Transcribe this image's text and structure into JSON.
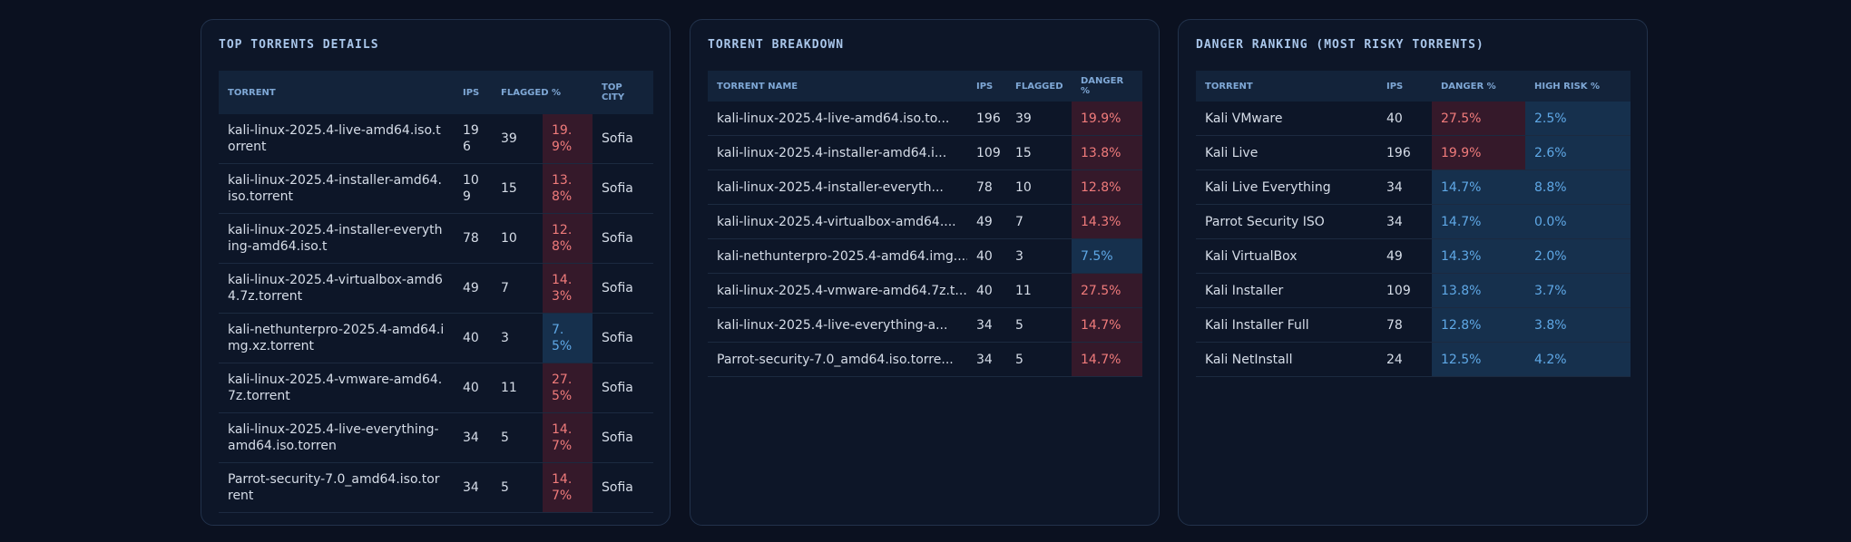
{
  "panels": [
    {
      "title": "TOP TORRENTS DETAILS",
      "columns": [
        "TORRENT",
        "IPS",
        "FLAGGED",
        "%",
        "TOP CITY"
      ],
      "widths": [
        259,
        42,
        56,
        55,
        67
      ],
      "tone_columns": [
        3
      ],
      "rows": [
        [
          "kali-linux-2025.4-live-amd64.iso.torrent",
          "196",
          "39",
          "19.9%",
          "Sofia"
        ],
        [
          "kali-linux-2025.4-installer-amd64.iso.torrent",
          "109",
          "15",
          "13.8%",
          "Sofia"
        ],
        [
          "kali-linux-2025.4-installer-everything-amd64.iso.t",
          "78",
          "10",
          "12.8%",
          "Sofia"
        ],
        [
          "kali-linux-2025.4-virtualbox-amd64.7z.torrent",
          "49",
          "7",
          "14.3%",
          "Sofia"
        ],
        [
          "kali-nethunterpro-2025.4-amd64.img.xz.torrent",
          "40",
          "3",
          "7.5%",
          "Sofia"
        ],
        [
          "kali-linux-2025.4-vmware-amd64.7z.torrent",
          "40",
          "11",
          "27.5%",
          "Sofia"
        ],
        [
          "kali-linux-2025.4-live-everything-amd64.iso.torren",
          "34",
          "5",
          "14.7%",
          "Sofia"
        ],
        [
          "Parrot-security-7.0_amd64.iso.torrent",
          "34",
          "5",
          "14.7%",
          "Sofia"
        ]
      ],
      "tones": [
        [
          "red"
        ],
        [
          "red"
        ],
        [
          "red"
        ],
        [
          "red"
        ],
        [
          "blue"
        ],
        [
          "red"
        ],
        [
          "red"
        ],
        [
          "red"
        ]
      ]
    },
    {
      "title": "TORRENT BREAKDOWN",
      "columns": [
        "TORRENT NAME",
        "IPS",
        "FLAGGED",
        "DANGER %"
      ],
      "widths": [
        286,
        43,
        72,
        78
      ],
      "tone_columns": [
        3
      ],
      "rows": [
        [
          "kali-linux-2025.4-live-amd64.iso.to...",
          "196",
          "39",
          "19.9%"
        ],
        [
          "kali-linux-2025.4-installer-amd64.i...",
          "109",
          "15",
          "13.8%"
        ],
        [
          "kali-linux-2025.4-installer-everyth...",
          "78",
          "10",
          "12.8%"
        ],
        [
          "kali-linux-2025.4-virtualbox-amd64....",
          "49",
          "7",
          "14.3%"
        ],
        [
          "kali-nethunterpro-2025.4-amd64.img....",
          "40",
          "3",
          "7.5%"
        ],
        [
          "kali-linux-2025.4-vmware-amd64.7z.t...",
          "40",
          "11",
          "27.5%"
        ],
        [
          "kali-linux-2025.4-live-everything-a...",
          "34",
          "5",
          "14.7%"
        ],
        [
          "Parrot-security-7.0_amd64.iso.torre...",
          "34",
          "5",
          "14.7%"
        ]
      ],
      "tones": [
        [
          "red"
        ],
        [
          "red"
        ],
        [
          "red"
        ],
        [
          "red"
        ],
        [
          "blue"
        ],
        [
          "red"
        ],
        [
          "red"
        ],
        [
          "red"
        ]
      ]
    },
    {
      "title": "DANGER RANKING (MOST RISKY TORRENTS)",
      "columns": [
        "TORRENT",
        "IPS",
        "DANGER %",
        "HIGH RISK %"
      ],
      "widths": [
        200,
        60,
        103,
        116
      ],
      "tone_columns": [
        2,
        3
      ],
      "rows": [
        [
          "Kali VMware",
          "40",
          "27.5%",
          "2.5%"
        ],
        [
          "Kali Live",
          "196",
          "19.9%",
          "2.6%"
        ],
        [
          "Kali Live Everything",
          "34",
          "14.7%",
          "8.8%"
        ],
        [
          "Parrot Security ISO",
          "34",
          "14.7%",
          "0.0%"
        ],
        [
          "Kali VirtualBox",
          "49",
          "14.3%",
          "2.0%"
        ],
        [
          "Kali Installer",
          "109",
          "13.8%",
          "3.7%"
        ],
        [
          "Kali Installer Full",
          "78",
          "12.8%",
          "3.8%"
        ],
        [
          "Kali NetInstall",
          "24",
          "12.5%",
          "4.2%"
        ]
      ],
      "tones": [
        [
          "red",
          "blue"
        ],
        [
          "red",
          "blue"
        ],
        [
          "blue",
          "blue"
        ],
        [
          "blue",
          "blue"
        ],
        [
          "blue",
          "blue"
        ],
        [
          "blue",
          "blue"
        ],
        [
          "blue",
          "blue"
        ],
        [
          "blue",
          "blue"
        ]
      ]
    }
  ]
}
